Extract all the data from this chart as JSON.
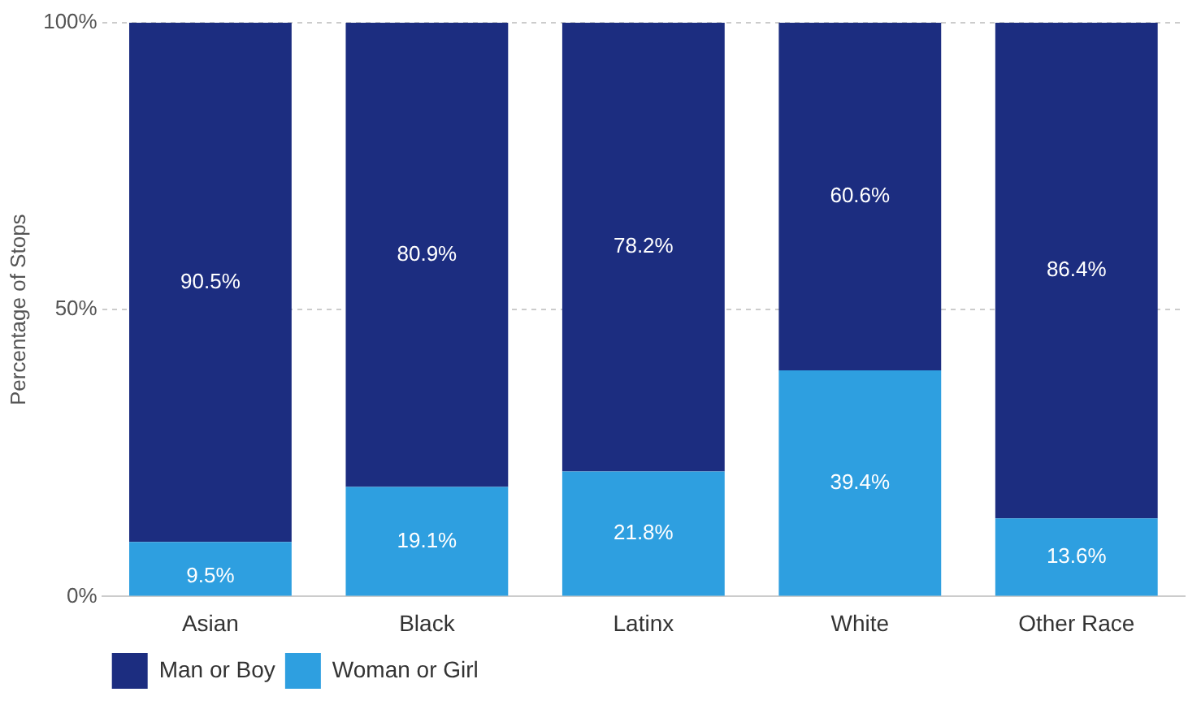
{
  "chart_data": {
    "type": "bar",
    "stacked": true,
    "ylabel": "Percentage of Stops",
    "categories": [
      "Asian",
      "Black",
      "Latinx",
      "White",
      "Other Race"
    ],
    "series": [
      {
        "name": "Woman or Girl",
        "color": "#2e9fe0",
        "values": [
          9.5,
          19.1,
          21.8,
          39.4,
          13.6
        ],
        "value_labels": [
          "9.5%",
          "19.1%",
          "21.8%",
          "39.4%",
          "13.6%"
        ]
      },
      {
        "name": "Man or Boy",
        "color": "#1c2d80",
        "values": [
          90.5,
          80.9,
          78.2,
          60.6,
          86.4
        ],
        "value_labels": [
          "90.5%",
          "80.9%",
          "78.2%",
          "60.6%",
          "86.4%"
        ]
      }
    ],
    "ylim": [
      0,
      100
    ],
    "yticks": [
      {
        "value": 0,
        "label": "0%"
      },
      {
        "value": 50,
        "label": "50%"
      },
      {
        "value": 100,
        "label": "100%"
      }
    ],
    "grid": "y",
    "legend": "bottom left"
  }
}
